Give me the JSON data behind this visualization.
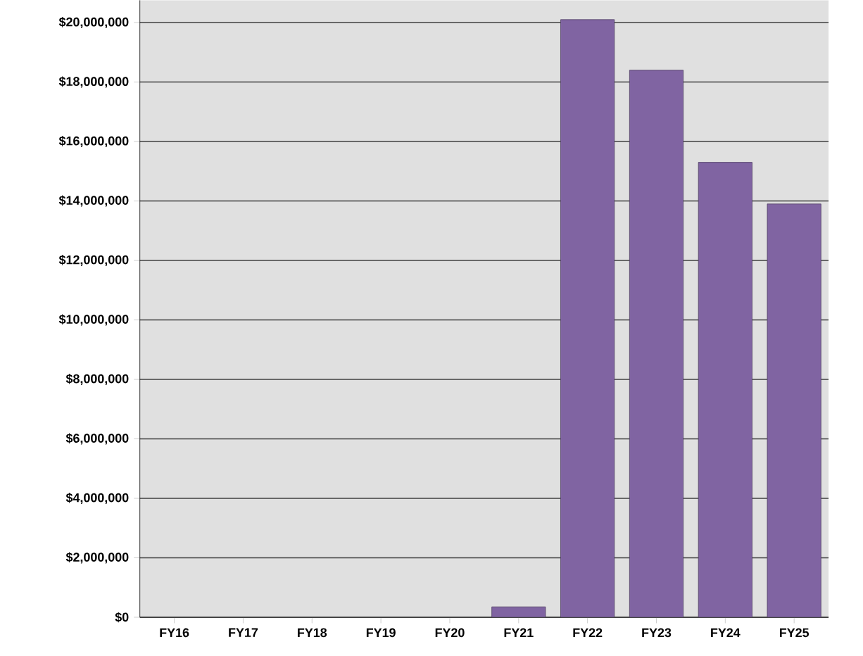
{
  "chart_data": {
    "type": "bar",
    "categories": [
      "FY16",
      "FY17",
      "FY18",
      "FY19",
      "FY20",
      "FY21",
      "FY22",
      "FY23",
      "FY24",
      "FY25"
    ],
    "values": [
      null,
      null,
      null,
      null,
      null,
      350000,
      20100000,
      18400000,
      15300000,
      13900000
    ],
    "color": "#8064a2",
    "ylim": [
      0,
      20750000
    ],
    "yticks": [
      {
        "value": 0,
        "label": "$0"
      },
      {
        "value": 2000000,
        "label": "$2,000,000"
      },
      {
        "value": 4000000,
        "label": "$4,000,000"
      },
      {
        "value": 6000000,
        "label": "$6,000,000"
      },
      {
        "value": 8000000,
        "label": "$8,000,000"
      },
      {
        "value": 10000000,
        "label": "$10,000,000"
      },
      {
        "value": 12000000,
        "label": "$12,000,000"
      },
      {
        "value": 14000000,
        "label": "$14,000,000"
      },
      {
        "value": 16000000,
        "label": "$16,000,000"
      },
      {
        "value": 18000000,
        "label": "$18,000,000"
      },
      {
        "value": 20000000,
        "label": "$20,000,000"
      }
    ],
    "grid": "y"
  }
}
